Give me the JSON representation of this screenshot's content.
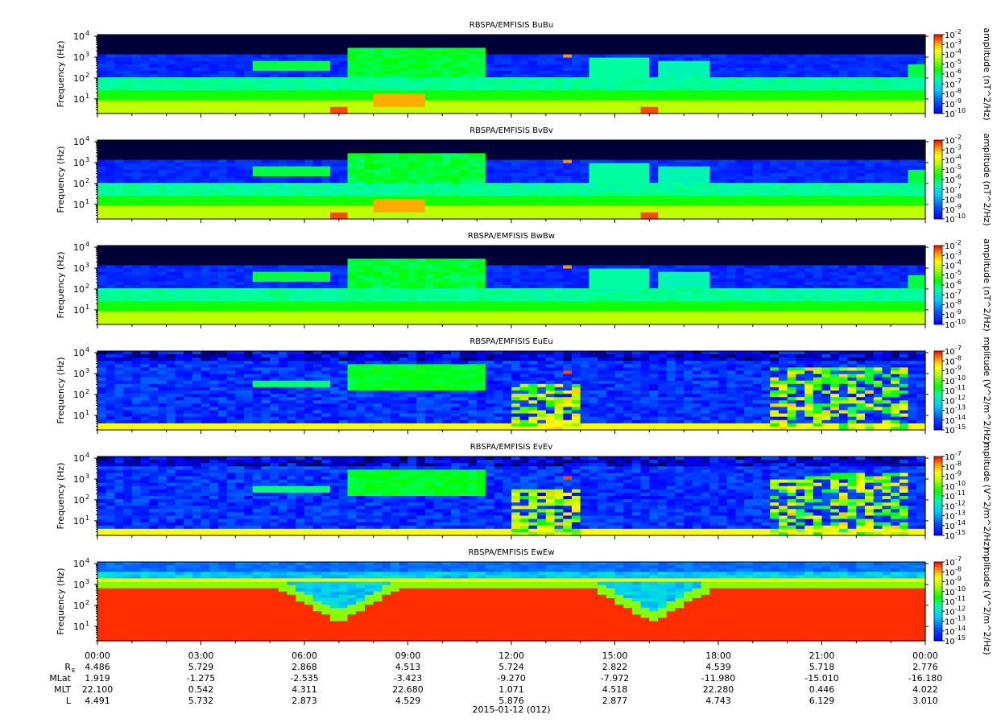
{
  "chart_data": {
    "type": "heatmap",
    "date_label": "2015-01-12 (012)",
    "x_axis": {
      "ticks": [
        "00:00",
        "03:00",
        "06:00",
        "09:00",
        "12:00",
        "15:00",
        "18:00",
        "21:00",
        "00:00"
      ],
      "hours": [
        0,
        3,
        6,
        9,
        12,
        15,
        18,
        21,
        24
      ],
      "range_hours": [
        0,
        24
      ]
    },
    "y_axis": {
      "label": "Frequency (Hz)",
      "scale": "log",
      "range_hz": [
        2,
        12000
      ],
      "ticks": [
        {
          "base": "10",
          "exp": "4",
          "value": 10000
        },
        {
          "base": "10",
          "exp": "3",
          "value": 1000
        },
        {
          "base": "10",
          "exp": "2",
          "value": 100
        },
        {
          "base": "10",
          "exp": "1",
          "value": 10
        }
      ]
    },
    "panels": [
      {
        "title": "RBSPA/EMFISIS  BuBu",
        "kind": "magnetic",
        "cbar_label": "amplitude (nT^2/Hz)",
        "cbar_ticks": [
          {
            "base": "10",
            "exp": "-2"
          },
          {
            "base": "10",
            "exp": "-3"
          },
          {
            "base": "10",
            "exp": "-4"
          },
          {
            "base": "10",
            "exp": "-5"
          },
          {
            "base": "10",
            "exp": "-6"
          },
          {
            "base": "10",
            "exp": "-7"
          },
          {
            "base": "10",
            "exp": "-8"
          },
          {
            "base": "10",
            "exp": "-9"
          },
          {
            "base": "10",
            "exp": "-10"
          }
        ]
      },
      {
        "title": "RBSPA/EMFISIS  BvBv",
        "kind": "magnetic",
        "cbar_label": "amplitude (nT^2/Hz)",
        "cbar_ticks": [
          {
            "base": "10",
            "exp": "-2"
          },
          {
            "base": "10",
            "exp": "-3"
          },
          {
            "base": "10",
            "exp": "-4"
          },
          {
            "base": "10",
            "exp": "-5"
          },
          {
            "base": "10",
            "exp": "-6"
          },
          {
            "base": "10",
            "exp": "-7"
          },
          {
            "base": "10",
            "exp": "-8"
          },
          {
            "base": "10",
            "exp": "-9"
          },
          {
            "base": "10",
            "exp": "-10"
          }
        ]
      },
      {
        "title": "RBSPA/EMFISIS  BwBw",
        "kind": "magnetic",
        "cbar_label": "amplitude (nT^2/Hz)",
        "cbar_ticks": [
          {
            "base": "10",
            "exp": "-2"
          },
          {
            "base": "10",
            "exp": "-3"
          },
          {
            "base": "10",
            "exp": "-4"
          },
          {
            "base": "10",
            "exp": "-5"
          },
          {
            "base": "10",
            "exp": "-6"
          },
          {
            "base": "10",
            "exp": "-7"
          },
          {
            "base": "10",
            "exp": "-8"
          },
          {
            "base": "10",
            "exp": "-9"
          },
          {
            "base": "10",
            "exp": "-10"
          }
        ]
      },
      {
        "title": "RBSPA/EMFISIS  EuEu",
        "kind": "electric",
        "cbar_label": "mplitude (V^2/m^2/Hz)",
        "cbar_ticks": [
          {
            "base": "10",
            "exp": "-7"
          },
          {
            "base": "10",
            "exp": "-8"
          },
          {
            "base": "10",
            "exp": "-9"
          },
          {
            "base": "10",
            "exp": "-10"
          },
          {
            "base": "10",
            "exp": "-11"
          },
          {
            "base": "10",
            "exp": "-12"
          },
          {
            "base": "10",
            "exp": "-13"
          },
          {
            "base": "10",
            "exp": "-14"
          },
          {
            "base": "10",
            "exp": "-15"
          }
        ]
      },
      {
        "title": "RBSPA/EMFISIS  EvEv",
        "kind": "electric",
        "cbar_label": "mplitude (V^2/m^2/Hz)",
        "cbar_ticks": [
          {
            "base": "10",
            "exp": "-7"
          },
          {
            "base": "10",
            "exp": "-8"
          },
          {
            "base": "10",
            "exp": "-9"
          },
          {
            "base": "10",
            "exp": "-10"
          },
          {
            "base": "10",
            "exp": "-11"
          },
          {
            "base": "10",
            "exp": "-12"
          },
          {
            "base": "10",
            "exp": "-13"
          },
          {
            "base": "10",
            "exp": "-14"
          },
          {
            "base": "10",
            "exp": "-15"
          }
        ]
      },
      {
        "title": "RBSPA/EMFISIS  EwEw",
        "kind": "electric_w",
        "cbar_label": "mplitude (V^2/m^2/Hz)",
        "cbar_ticks": [
          {
            "base": "10",
            "exp": "-7"
          },
          {
            "base": "10",
            "exp": "-8"
          },
          {
            "base": "10",
            "exp": "-9"
          },
          {
            "base": "10",
            "exp": "-10"
          },
          {
            "base": "10",
            "exp": "-11"
          },
          {
            "base": "10",
            "exp": "-12"
          },
          {
            "base": "10",
            "exp": "-13"
          },
          {
            "base": "10",
            "exp": "-14"
          },
          {
            "base": "10",
            "exp": "-15"
          }
        ]
      }
    ],
    "ephemeris": [
      {
        "name_main": "R",
        "name_sub": "E",
        "values": [
          "4.486",
          "5.729",
          "2.868",
          "4.513",
          "5.724",
          "2.822",
          "4.539",
          "5.718",
          "2.776"
        ]
      },
      {
        "name_main": "MLat",
        "name_sub": "",
        "values": [
          "1.919",
          "-1.275",
          "-2.535",
          "-3.423",
          "-9.270",
          "-7.972",
          "-11.980",
          "-15.010",
          "-16.180"
        ]
      },
      {
        "name_main": "MLT",
        "name_sub": "",
        "values": [
          "22.100",
          "0.542",
          "4.311",
          "22.680",
          "1.071",
          "4.518",
          "22.280",
          "0.446",
          "4.022"
        ]
      },
      {
        "name_main": "L",
        "name_sub": "",
        "values": [
          "4.491",
          "5.732",
          "2.873",
          "4.529",
          "5.876",
          "2.877",
          "4.743",
          "6.129",
          "3.010"
        ]
      }
    ],
    "colormap": [
      "#000000",
      "#0000c8",
      "#0000ff",
      "#0064ff",
      "#00c8ff",
      "#00ffa0",
      "#00ff00",
      "#a0ff00",
      "#ffff00",
      "#ff9600",
      "#ff0000"
    ]
  }
}
